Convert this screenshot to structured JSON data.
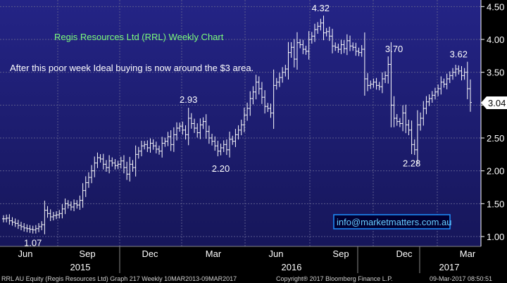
{
  "chart_data": {
    "type": "ohlc",
    "title": "Regis Resources Ltd (RRL) Weekly Chart",
    "annotation": "After this poor week Ideal buying is now around the $3 area.",
    "link_text": "info@marketmatters.com.au",
    "ylim": [
      0.85,
      4.6
    ],
    "ytick_labels": [
      "1.00",
      "1.50",
      "2.00",
      "2.50",
      "3.00",
      "3.50",
      "4.00",
      "4.50"
    ],
    "yticks": [
      1.0,
      1.5,
      2.0,
      2.5,
      3.0,
      3.5,
      4.0,
      4.5
    ],
    "last_price": "3.04",
    "last_price_value": 3.04,
    "x_month_labels": [
      "Jun",
      "Sep",
      "Dec",
      "Mar",
      "Jun",
      "Sep",
      "Dec",
      "Mar"
    ],
    "x_year_labels": [
      "2015",
      "2016",
      "2017"
    ],
    "point_labels": [
      {
        "text": "1.07",
        "week": 10,
        "value": 1.07,
        "where": "below"
      },
      {
        "text": "2.93",
        "week": 63,
        "value": 2.93,
        "where": "above"
      },
      {
        "text": "2.20",
        "week": 74,
        "value": 2.2,
        "where": "below"
      },
      {
        "text": "4.32",
        "week": 108,
        "value": 4.32,
        "where": "above"
      },
      {
        "text": "3.70",
        "week": 133,
        "value": 3.7,
        "where": "above"
      },
      {
        "text": "2.28",
        "week": 139,
        "value": 2.28,
        "where": "below"
      },
      {
        "text": "3.62",
        "week": 155,
        "value": 3.62,
        "where": "above"
      }
    ],
    "weekly_close": [
      1.27,
      1.28,
      1.24,
      1.22,
      1.2,
      1.17,
      1.15,
      1.13,
      1.12,
      1.11,
      1.1,
      1.12,
      1.15,
      1.18,
      1.4,
      1.35,
      1.3,
      1.32,
      1.33,
      1.35,
      1.42,
      1.5,
      1.48,
      1.45,
      1.5,
      1.48,
      1.55,
      1.7,
      1.82,
      1.9,
      2.0,
      2.12,
      2.2,
      2.18,
      2.1,
      2.05,
      2.15,
      2.12,
      2.08,
      2.1,
      2.15,
      2.05,
      1.95,
      2.1,
      2.05,
      2.25,
      2.3,
      2.38,
      2.4,
      2.35,
      2.42,
      2.38,
      2.33,
      2.3,
      2.42,
      2.45,
      2.52,
      2.4,
      2.55,
      2.65,
      2.68,
      2.62,
      2.55,
      2.8,
      2.72,
      2.65,
      2.58,
      2.7,
      2.75,
      2.6,
      2.5,
      2.45,
      2.38,
      2.3,
      2.35,
      2.4,
      2.32,
      2.48,
      2.45,
      2.55,
      2.62,
      2.7,
      2.85,
      2.95,
      3.1,
      3.2,
      3.35,
      3.25,
      3.12,
      2.98,
      2.95,
      2.88,
      3.3,
      3.35,
      3.42,
      3.5,
      3.55,
      3.8,
      3.88,
      3.7,
      3.95,
      3.92,
      3.85,
      3.82,
      4.0,
      4.05,
      4.15,
      4.2,
      4.25,
      4.1,
      4.12,
      4.05,
      3.9,
      3.88,
      3.85,
      3.92,
      3.86,
      3.98,
      3.9,
      3.88,
      3.82,
      3.8,
      3.85,
      3.4,
      3.3,
      3.32,
      3.35,
      3.3,
      3.28,
      3.4,
      3.45,
      3.62,
      3.0,
      2.8,
      2.75,
      2.72,
      2.88,
      2.7,
      2.62,
      2.4,
      2.32,
      2.7,
      2.8,
      2.95,
      3.05,
      3.1,
      3.15,
      3.2,
      3.25,
      3.35,
      3.32,
      3.4,
      3.45,
      3.5,
      3.55,
      3.52,
      3.45,
      3.5,
      3.25,
      3.04
    ]
  },
  "footer": {
    "left": "RRL AU Equity (Regis Resources Ltd) Graph 217  Weekly 10MAR2013-09MAR2017",
    "center": "Copyright® 2017 Bloomberg Finance L.P.",
    "right": "09-Mar-2017 08:50:51"
  },
  "colors": {
    "plot_bg": "#1c1c6e",
    "plot_bg_top": "#20207a",
    "grid": "#5a5a8c",
    "bars": "#ffffff",
    "title": "#7CFC7C",
    "link_border": "#1e90ff",
    "link_text": "#66ccff"
  }
}
